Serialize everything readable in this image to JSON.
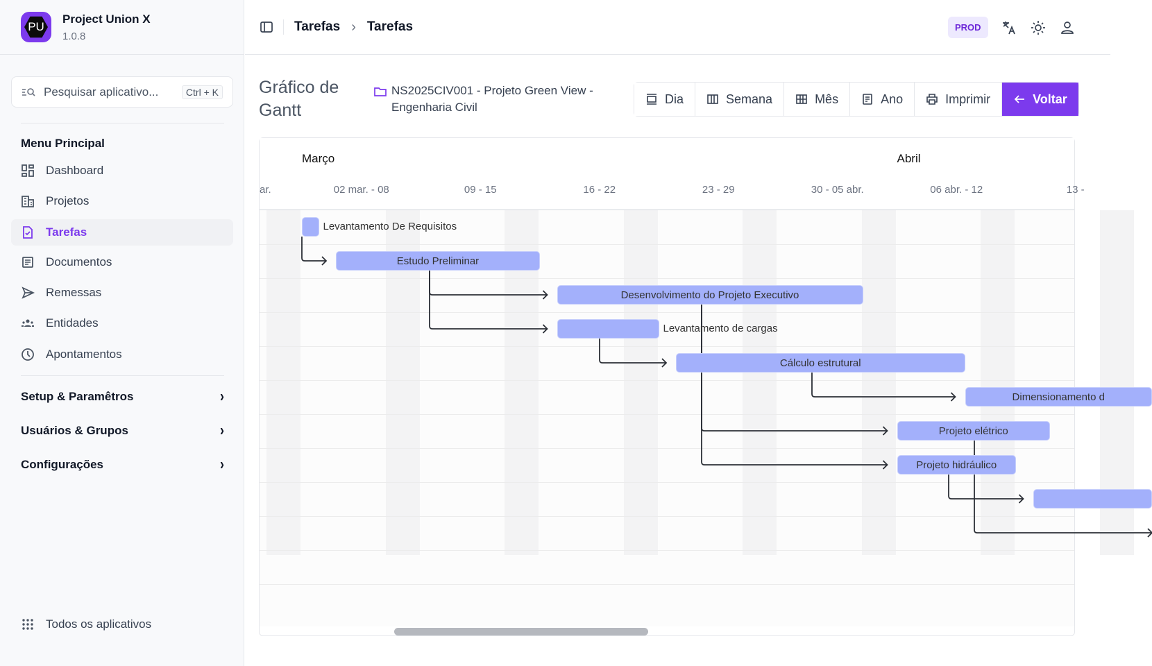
{
  "app": {
    "name": "Project Union X",
    "version": "1.0.8",
    "logo_text": "PU"
  },
  "sidebar": {
    "search": {
      "placeholder": "Pesquisar aplicativo...",
      "shortcut": "Ctrl + K"
    },
    "menu_title": "Menu Principal",
    "items": [
      {
        "label": "Dashboard",
        "icon": "dashboard-icon"
      },
      {
        "label": "Projetos",
        "icon": "building-icon"
      },
      {
        "label": "Tarefas",
        "icon": "file-check-icon",
        "active": true
      },
      {
        "label": "Documentos",
        "icon": "document-icon"
      },
      {
        "label": "Remessas",
        "icon": "send-icon"
      },
      {
        "label": "Entidades",
        "icon": "users-icon"
      },
      {
        "label": "Apontamentos",
        "icon": "clock-icon"
      }
    ],
    "groups": [
      {
        "label": "Setup & Paramêtros"
      },
      {
        "label": "Usuários & Grupos"
      },
      {
        "label": "Configurações"
      }
    ],
    "all_apps": "Todos os aplicativos"
  },
  "header": {
    "breadcrumb": [
      "Tarefas",
      "Tarefas"
    ],
    "env_badge": "PROD"
  },
  "page": {
    "title": "Gráfico de Gantt",
    "project": "NS2025CIV001 - Projeto Green View - Engenharia Civil"
  },
  "toolbar": {
    "day": "Dia",
    "week": "Semana",
    "month": "Mês",
    "year": "Ano",
    "print": "Imprimir",
    "back": "Voltar"
  },
  "colors": {
    "accent": "#7c3aed",
    "bar": "#a3b0fb"
  },
  "chart_data": {
    "type": "gantt",
    "months": [
      {
        "label": "Março",
        "start": "2026-03-02"
      },
      {
        "label": "Abril",
        "start": "2026-04-06"
      }
    ],
    "weeks": [
      "ar.",
      "02 mar. - 08",
      "09 - 15",
      "16 - 22",
      "23 - 29",
      "30 - 05 abr.",
      "06 abr. - 12",
      "13 -"
    ],
    "tasks": [
      {
        "name": "Levantamento De Requisitos",
        "start": "2026-03-02",
        "end": "2026-03-02",
        "label_outside": true
      },
      {
        "name": "Estudo Preliminar",
        "start": "2026-03-04",
        "end": "2026-03-15"
      },
      {
        "name": "Desenvolvimento do Projeto Executivo",
        "start": "2026-03-17",
        "end": "2026-04-03"
      },
      {
        "name": "Levantamento de cargas",
        "start": "2026-03-17",
        "end": "2026-03-22",
        "label_outside": true
      },
      {
        "name": "Cálculo estrutural",
        "start": "2026-03-24",
        "end": "2026-04-09"
      },
      {
        "name": "Dimensionamento d",
        "start": "2026-04-10",
        "end": "2026-04-20"
      },
      {
        "name": "Projeto elétrico",
        "start": "2026-04-06",
        "end": "2026-04-14"
      },
      {
        "name": "Projeto hidráulico",
        "start": "2026-04-06",
        "end": "2026-04-12"
      },
      {
        "name": "",
        "start": "2026-04-14",
        "end": "2026-04-20"
      }
    ],
    "dependencies": [
      [
        0,
        1
      ],
      [
        1,
        2
      ],
      [
        1,
        3
      ],
      [
        3,
        4
      ],
      [
        4,
        5
      ],
      [
        2,
        6
      ],
      [
        2,
        7
      ],
      [
        7,
        8
      ],
      [
        6,
        9
      ]
    ]
  }
}
